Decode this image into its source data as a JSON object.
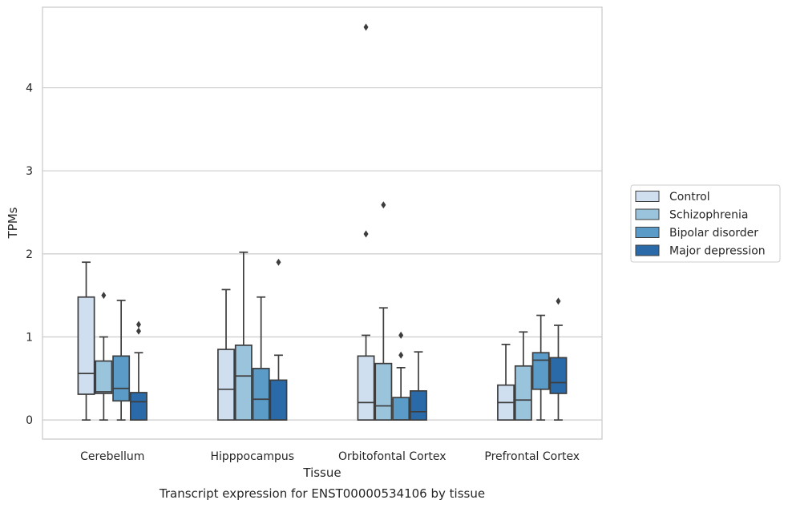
{
  "chart_data": {
    "type": "box",
    "caption": "Transcript expression for ENST00000534106 by tissue",
    "xlabel": "Tissue",
    "ylabel": "TPMs",
    "categories": [
      "Cerebellum",
      "Hipppocampus",
      "Orbitofontal Cortex",
      "Prefrontal Cortex"
    ],
    "ylim": [
      -0.23,
      4.97
    ],
    "yticks": [
      0,
      1,
      2,
      3,
      4
    ],
    "grid": "horizontal",
    "legend_position": "right",
    "series": [
      {
        "name": "Control",
        "color": "#cfdff0",
        "boxes": [
          {
            "min": 0.0,
            "q1": 0.31,
            "median": 0.56,
            "q3": 1.48,
            "max": 1.9,
            "outliers": []
          },
          {
            "min": 0.0,
            "q1": 0.0,
            "median": 0.37,
            "q3": 0.85,
            "max": 1.57,
            "outliers": []
          },
          {
            "min": 0.0,
            "q1": 0.0,
            "median": 0.21,
            "q3": 0.77,
            "max": 1.02,
            "outliers": [
              2.24,
              4.73
            ]
          },
          {
            "min": 0.0,
            "q1": 0.0,
            "median": 0.21,
            "q3": 0.42,
            "max": 0.91,
            "outliers": []
          }
        ]
      },
      {
        "name": "Schizophrenia",
        "color": "#9ac3dc",
        "boxes": [
          {
            "min": 0.0,
            "q1": 0.32,
            "median": 0.34,
            "q3": 0.71,
            "max": 1.0,
            "outliers": [
              1.5
            ]
          },
          {
            "min": 0.0,
            "q1": 0.0,
            "median": 0.53,
            "q3": 0.9,
            "max": 2.02,
            "outliers": []
          },
          {
            "min": 0.0,
            "q1": 0.0,
            "median": 0.17,
            "q3": 0.68,
            "max": 1.35,
            "outliers": [
              2.59
            ]
          },
          {
            "min": 0.0,
            "q1": 0.0,
            "median": 0.24,
            "q3": 0.65,
            "max": 1.06,
            "outliers": []
          }
        ]
      },
      {
        "name": "Bipolar disorder",
        "color": "#5a9bc8",
        "boxes": [
          {
            "min": 0.0,
            "q1": 0.23,
            "median": 0.38,
            "q3": 0.77,
            "max": 1.44,
            "outliers": []
          },
          {
            "min": 0.0,
            "q1": 0.0,
            "median": 0.25,
            "q3": 0.62,
            "max": 1.48,
            "outliers": []
          },
          {
            "min": 0.0,
            "q1": 0.0,
            "median": 0.0,
            "q3": 0.27,
            "max": 0.63,
            "outliers": [
              0.78,
              1.02
            ]
          },
          {
            "min": 0.0,
            "q1": 0.37,
            "median": 0.72,
            "q3": 0.81,
            "max": 1.26,
            "outliers": []
          }
        ]
      },
      {
        "name": "Major depression",
        "color": "#2a6aa8",
        "boxes": [
          {
            "min": 0.0,
            "q1": 0.0,
            "median": 0.22,
            "q3": 0.33,
            "max": 0.81,
            "outliers": [
              1.07,
              1.15
            ]
          },
          {
            "min": 0.0,
            "q1": 0.0,
            "median": 0.0,
            "q3": 0.48,
            "max": 0.78,
            "outliers": [
              1.9
            ]
          },
          {
            "min": 0.0,
            "q1": 0.0,
            "median": 0.1,
            "q3": 0.35,
            "max": 0.82,
            "outliers": []
          },
          {
            "min": 0.0,
            "q1": 0.32,
            "median": 0.45,
            "q3": 0.75,
            "max": 1.14,
            "outliers": [
              1.43
            ]
          }
        ]
      }
    ]
  }
}
